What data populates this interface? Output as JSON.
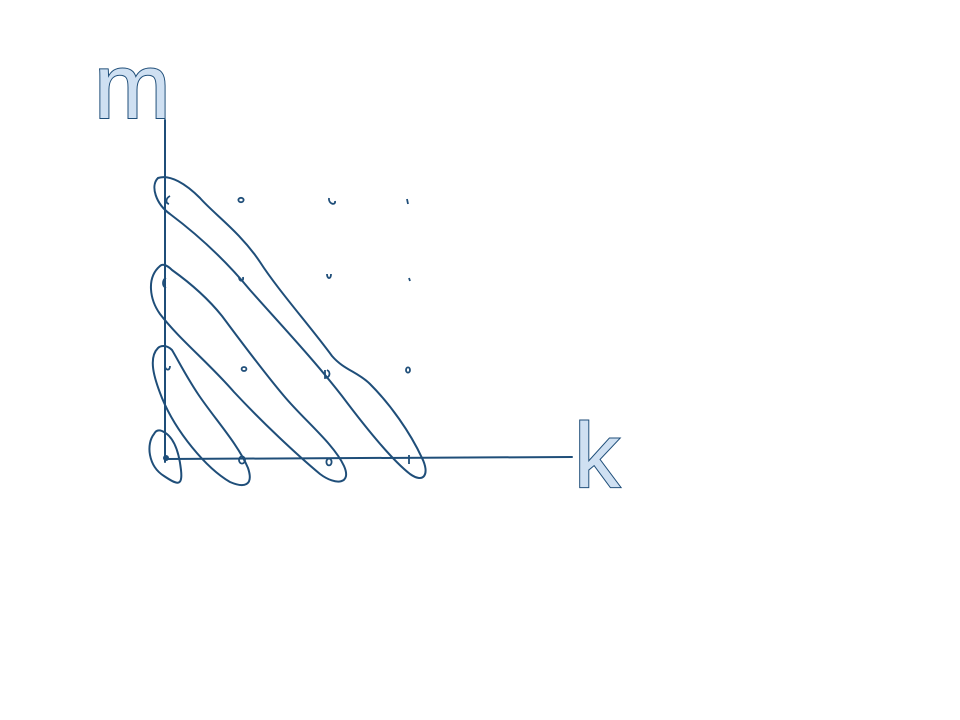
{
  "diagram": {
    "y_axis_label": "m",
    "x_axis_label": "k",
    "colors": {
      "ink": "#1f4e79",
      "letter_fill": "#cfe0f2",
      "background": "#ffffff"
    },
    "lattice": {
      "k_values": [
        0,
        1,
        2,
        3
      ],
      "m_values": [
        0,
        1,
        2,
        3
      ]
    },
    "diagonal_groupings": [
      {
        "k_plus_m": 0,
        "points": [
          [
            0,
            0
          ]
        ]
      },
      {
        "k_plus_m": 1,
        "points": [
          [
            0,
            1
          ],
          [
            1,
            0
          ]
        ]
      },
      {
        "k_plus_m": 2,
        "points": [
          [
            0,
            2
          ],
          [
            1,
            1
          ],
          [
            2,
            0
          ]
        ]
      },
      {
        "k_plus_m": 3,
        "points": [
          [
            0,
            3
          ],
          [
            1,
            2
          ],
          [
            2,
            1
          ],
          [
            3,
            0
          ]
        ]
      }
    ]
  }
}
